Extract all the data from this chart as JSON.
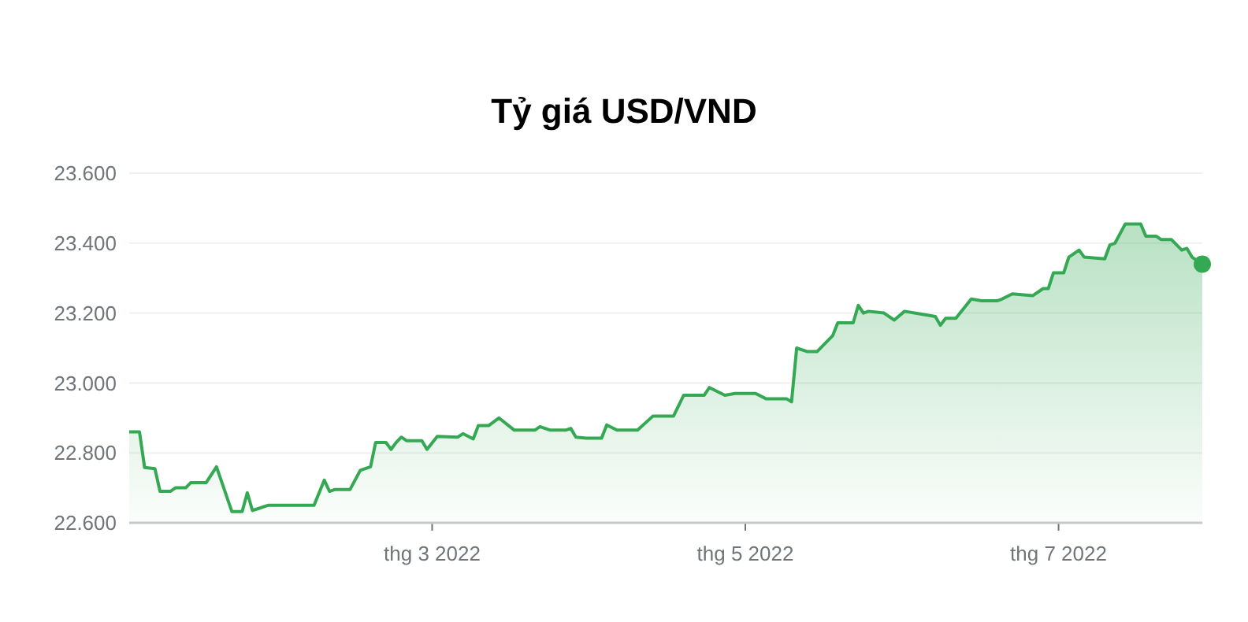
{
  "chart_data": {
    "type": "area",
    "title": "Tỷ giá USD/VND",
    "xlim": [
      "2022-01-01",
      "2022-07-29"
    ],
    "ylim": [
      22600,
      23600
    ],
    "xticks": [
      {
        "value": "2022-03-01",
        "label": "thg 3 2022"
      },
      {
        "value": "2022-05-01",
        "label": "thg 5 2022"
      },
      {
        "value": "2022-07-01",
        "label": "thg 7 2022"
      }
    ],
    "yticks": [
      {
        "value": 22600,
        "label": "22.600"
      },
      {
        "value": 22800,
        "label": "22.800"
      },
      {
        "value": 23000,
        "label": "23.000"
      },
      {
        "value": 23200,
        "label": "23.200"
      },
      {
        "value": 23400,
        "label": "23.400"
      },
      {
        "value": 23600,
        "label": "23.600"
      }
    ],
    "grid": "y",
    "series": [
      {
        "color": "#34a853",
        "x": [
          "2022-01-01",
          "2022-01-03",
          "2022-01-04",
          "2022-01-06",
          "2022-01-07",
          "2022-01-09",
          "2022-01-10",
          "2022-01-12",
          "2022-01-13",
          "2022-01-16",
          "2022-01-18",
          "2022-01-21",
          "2022-01-23",
          "2022-01-24",
          "2022-01-25",
          "2022-01-26",
          "2022-01-28",
          "2022-02-06",
          "2022-02-08",
          "2022-02-09",
          "2022-02-10",
          "2022-02-13",
          "2022-02-15",
          "2022-02-17",
          "2022-02-18",
          "2022-02-20",
          "2022-02-21",
          "2022-02-22",
          "2022-02-23",
          "2022-02-24",
          "2022-02-27",
          "2022-02-28",
          "2022-03-02",
          "2022-03-06",
          "2022-03-07",
          "2022-03-09",
          "2022-03-10",
          "2022-03-12",
          "2022-03-14",
          "2022-03-17",
          "2022-03-21",
          "2022-03-22",
          "2022-03-24",
          "2022-03-27",
          "2022-03-28",
          "2022-03-29",
          "2022-03-31",
          "2022-04-03",
          "2022-04-04",
          "2022-04-06",
          "2022-04-10",
          "2022-04-12",
          "2022-04-13",
          "2022-04-17",
          "2022-04-19",
          "2022-04-23",
          "2022-04-24",
          "2022-04-27",
          "2022-04-29",
          "2022-05-03",
          "2022-05-05",
          "2022-05-09",
          "2022-05-10",
          "2022-05-11",
          "2022-05-13",
          "2022-05-15",
          "2022-05-18",
          "2022-05-19",
          "2022-05-22",
          "2022-05-23",
          "2022-05-24",
          "2022-05-25",
          "2022-05-28",
          "2022-05-30",
          "2022-06-01",
          "2022-06-05",
          "2022-06-07",
          "2022-06-08",
          "2022-06-09",
          "2022-06-11",
          "2022-06-14",
          "2022-06-16",
          "2022-06-19",
          "2022-06-20",
          "2022-06-22",
          "2022-06-26",
          "2022-06-28",
          "2022-06-29",
          "2022-06-30",
          "2022-07-02",
          "2022-07-03",
          "2022-07-05",
          "2022-07-06",
          "2022-07-10",
          "2022-07-11",
          "2022-07-12",
          "2022-07-14",
          "2022-07-17",
          "2022-07-18",
          "2022-07-20",
          "2022-07-21",
          "2022-07-23",
          "2022-07-25",
          "2022-07-26",
          "2022-07-27",
          "2022-07-29"
        ],
        "values": [
          22860,
          22860,
          22758,
          22755,
          22690,
          22690,
          22700,
          22700,
          22715,
          22715,
          22760,
          22632,
          22632,
          22686,
          22635,
          22640,
          22650,
          22650,
          22722,
          22690,
          22695,
          22695,
          22750,
          22760,
          22830,
          22830,
          22810,
          22830,
          22845,
          22835,
          22835,
          22810,
          22847,
          22845,
          22855,
          22840,
          22878,
          22878,
          22900,
          22865,
          22865,
          22875,
          22865,
          22865,
          22870,
          22845,
          22842,
          22842,
          22880,
          22865,
          22865,
          22892,
          22905,
          22905,
          22965,
          22965,
          22987,
          22965,
          22970,
          22970,
          22955,
          22955,
          22946,
          23100,
          23090,
          23090,
          23135,
          23172,
          23172,
          23222,
          23200,
          23205,
          23200,
          23180,
          23205,
          23195,
          23190,
          23165,
          23185,
          23185,
          23240,
          23235,
          23235,
          23240,
          23255,
          23250,
          23270,
          23270,
          23315,
          23315,
          23360,
          23380,
          23360,
          23355,
          23395,
          23400,
          23455,
          23455,
          23420,
          23420,
          23410,
          23410,
          23380,
          23385,
          23360,
          23340
        ]
      },
      {
        "type": "scatter",
        "color": "#34a853",
        "marker": "circle",
        "x": [
          "2022-07-29"
        ],
        "values": [
          23340
        ]
      }
    ]
  }
}
